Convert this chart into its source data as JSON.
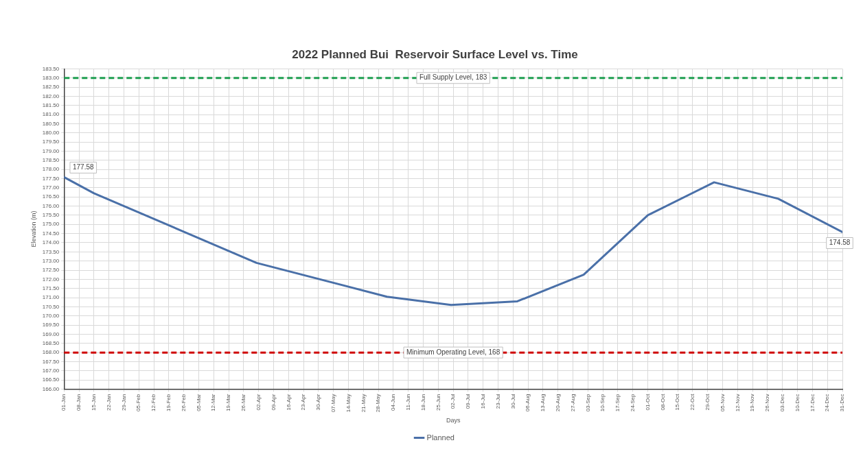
{
  "chart_data": {
    "type": "line",
    "title": "2022 Planned Bui  Reservoir Surface Level vs. Time",
    "xlabel": "Days",
    "ylabel": "Elevation (m)",
    "x": [
      "2022-01-01",
      "2022-01-15",
      "2022-04-01",
      "2022-06-01",
      "2022-07-01",
      "2022-08-01",
      "2022-09-01",
      "2022-10-01",
      "2022-11-01",
      "2022-12-01",
      "2022-12-31"
    ],
    "series": [
      {
        "name": "Planned",
        "color": "#4a70a8",
        "values": [
          177.58,
          176.7,
          172.9,
          171.05,
          170.6,
          170.8,
          172.25,
          175.5,
          177.3,
          176.4,
          174.58
        ],
        "value_labels": [
          "177.58",
          null,
          null,
          null,
          null,
          null,
          null,
          null,
          null,
          null,
          "174.58"
        ]
      }
    ],
    "xlim": [
      "2022-01-01",
      "2022-12-31"
    ],
    "xticks": [
      {
        "value": "2022-01-01",
        "label": "01-Jan"
      },
      {
        "value": "2022-01-08",
        "label": "08-Jan"
      },
      {
        "value": "2022-01-15",
        "label": "15-Jan"
      },
      {
        "value": "2022-01-22",
        "label": "22-Jan"
      },
      {
        "value": "2022-01-29",
        "label": "29-Jan"
      },
      {
        "value": "2022-02-05",
        "label": "05-Feb"
      },
      {
        "value": "2022-02-12",
        "label": "12-Feb"
      },
      {
        "value": "2022-02-19",
        "label": "19-Feb"
      },
      {
        "value": "2022-02-26",
        "label": "26-Feb"
      },
      {
        "value": "2022-03-05",
        "label": "05-Mar"
      },
      {
        "value": "2022-03-12",
        "label": "12-Mar"
      },
      {
        "value": "2022-03-19",
        "label": "19-Mar"
      },
      {
        "value": "2022-03-26",
        "label": "26-Mar"
      },
      {
        "value": "2022-04-02",
        "label": "02-Apr"
      },
      {
        "value": "2022-04-09",
        "label": "09-Apr"
      },
      {
        "value": "2022-04-16",
        "label": "16-Apr"
      },
      {
        "value": "2022-04-23",
        "label": "23-Apr"
      },
      {
        "value": "2022-04-30",
        "label": "30-Apr"
      },
      {
        "value": "2022-05-07",
        "label": "07-May"
      },
      {
        "value": "2022-05-14",
        "label": "14-May"
      },
      {
        "value": "2022-05-21",
        "label": "21-May"
      },
      {
        "value": "2022-05-28",
        "label": "28-May"
      },
      {
        "value": "2022-06-04",
        "label": "04-Jun"
      },
      {
        "value": "2022-06-11",
        "label": "11-Jun"
      },
      {
        "value": "2022-06-18",
        "label": "18-Jun"
      },
      {
        "value": "2022-06-25",
        "label": "25-Jun"
      },
      {
        "value": "2022-07-02",
        "label": "02-Jul"
      },
      {
        "value": "2022-07-09",
        "label": "09-Jul"
      },
      {
        "value": "2022-07-16",
        "label": "16-Jul"
      },
      {
        "value": "2022-07-23",
        "label": "23-Jul"
      },
      {
        "value": "2022-07-30",
        "label": "30-Jul"
      },
      {
        "value": "2022-08-06",
        "label": "06-Aug"
      },
      {
        "value": "2022-08-13",
        "label": "13-Aug"
      },
      {
        "value": "2022-08-20",
        "label": "20-Aug"
      },
      {
        "value": "2022-08-27",
        "label": "27-Aug"
      },
      {
        "value": "2022-09-03",
        "label": "03-Sep"
      },
      {
        "value": "2022-09-10",
        "label": "10-Sep"
      },
      {
        "value": "2022-09-17",
        "label": "17-Sep"
      },
      {
        "value": "2022-09-24",
        "label": "24-Sep"
      },
      {
        "value": "2022-10-01",
        "label": "01-Oct"
      },
      {
        "value": "2022-10-08",
        "label": "08-Oct"
      },
      {
        "value": "2022-10-15",
        "label": "15-Oct"
      },
      {
        "value": "2022-10-22",
        "label": "22-Oct"
      },
      {
        "value": "2022-10-29",
        "label": "29-Oct"
      },
      {
        "value": "2022-11-05",
        "label": "05-Nov"
      },
      {
        "value": "2022-11-12",
        "label": "12-Nov"
      },
      {
        "value": "2022-11-19",
        "label": "19-Nov"
      },
      {
        "value": "2022-11-26",
        "label": "26-Nov"
      },
      {
        "value": "2022-12-03",
        "label": "03-Dec"
      },
      {
        "value": "2022-12-10",
        "label": "10-Dec"
      },
      {
        "value": "2022-12-17",
        "label": "17-Dec"
      },
      {
        "value": "2022-12-24",
        "label": "24-Dec"
      },
      {
        "value": "2022-12-31",
        "label": "31-Dec"
      }
    ],
    "ylim": [
      166,
      183.5
    ],
    "yticks": [
      {
        "value": 166,
        "label": "166.00"
      },
      {
        "value": 166.5,
        "label": "166.50"
      },
      {
        "value": 167,
        "label": "167.00"
      },
      {
        "value": 167.5,
        "label": "167.50"
      },
      {
        "value": 168,
        "label": "168.00"
      },
      {
        "value": 168.5,
        "label": "168.50"
      },
      {
        "value": 169,
        "label": "169.00"
      },
      {
        "value": 169.5,
        "label": "169.50"
      },
      {
        "value": 170,
        "label": "170.00"
      },
      {
        "value": 170.5,
        "label": "170.50"
      },
      {
        "value": 171,
        "label": "171.00"
      },
      {
        "value": 171.5,
        "label": "171.50"
      },
      {
        "value": 172,
        "label": "172.00"
      },
      {
        "value": 172.5,
        "label": "172.50"
      },
      {
        "value": 173,
        "label": "173.00"
      },
      {
        "value": 173.5,
        "label": "173.50"
      },
      {
        "value": 174,
        "label": "174.00"
      },
      {
        "value": 174.5,
        "label": "174.50"
      },
      {
        "value": 175,
        "label": "175.00"
      },
      {
        "value": 175.5,
        "label": "175.50"
      },
      {
        "value": 176,
        "label": "176.00"
      },
      {
        "value": 176.5,
        "label": "176.50"
      },
      {
        "value": 177,
        "label": "177.00"
      },
      {
        "value": 177.5,
        "label": "177.50"
      },
      {
        "value": 178,
        "label": "178.00"
      },
      {
        "value": 178.5,
        "label": "178.50"
      },
      {
        "value": 179,
        "label": "179.00"
      },
      {
        "value": 179.5,
        "label": "179.50"
      },
      {
        "value": 180,
        "label": "180.00"
      },
      {
        "value": 180.5,
        "label": "180.50"
      },
      {
        "value": 181,
        "label": "181.00"
      },
      {
        "value": 181.5,
        "label": "181.50"
      },
      {
        "value": 182,
        "label": "182.00"
      },
      {
        "value": 182.5,
        "label": "182.50"
      },
      {
        "value": 183,
        "label": "183.00"
      },
      {
        "value": 183.5,
        "label": "183.50"
      }
    ],
    "ref_lines": [
      {
        "axis": "y",
        "value": 183,
        "label": "Full Supply Level, 183",
        "color": "#1e9e50",
        "line_style": "dashed"
      },
      {
        "axis": "y",
        "value": 168,
        "label": "Minimum Operating Level, 168",
        "color": "#d00000",
        "line_style": "dashed"
      }
    ],
    "grid": true,
    "legend": "bottom",
    "marker": "none",
    "line_style": "solid"
  }
}
